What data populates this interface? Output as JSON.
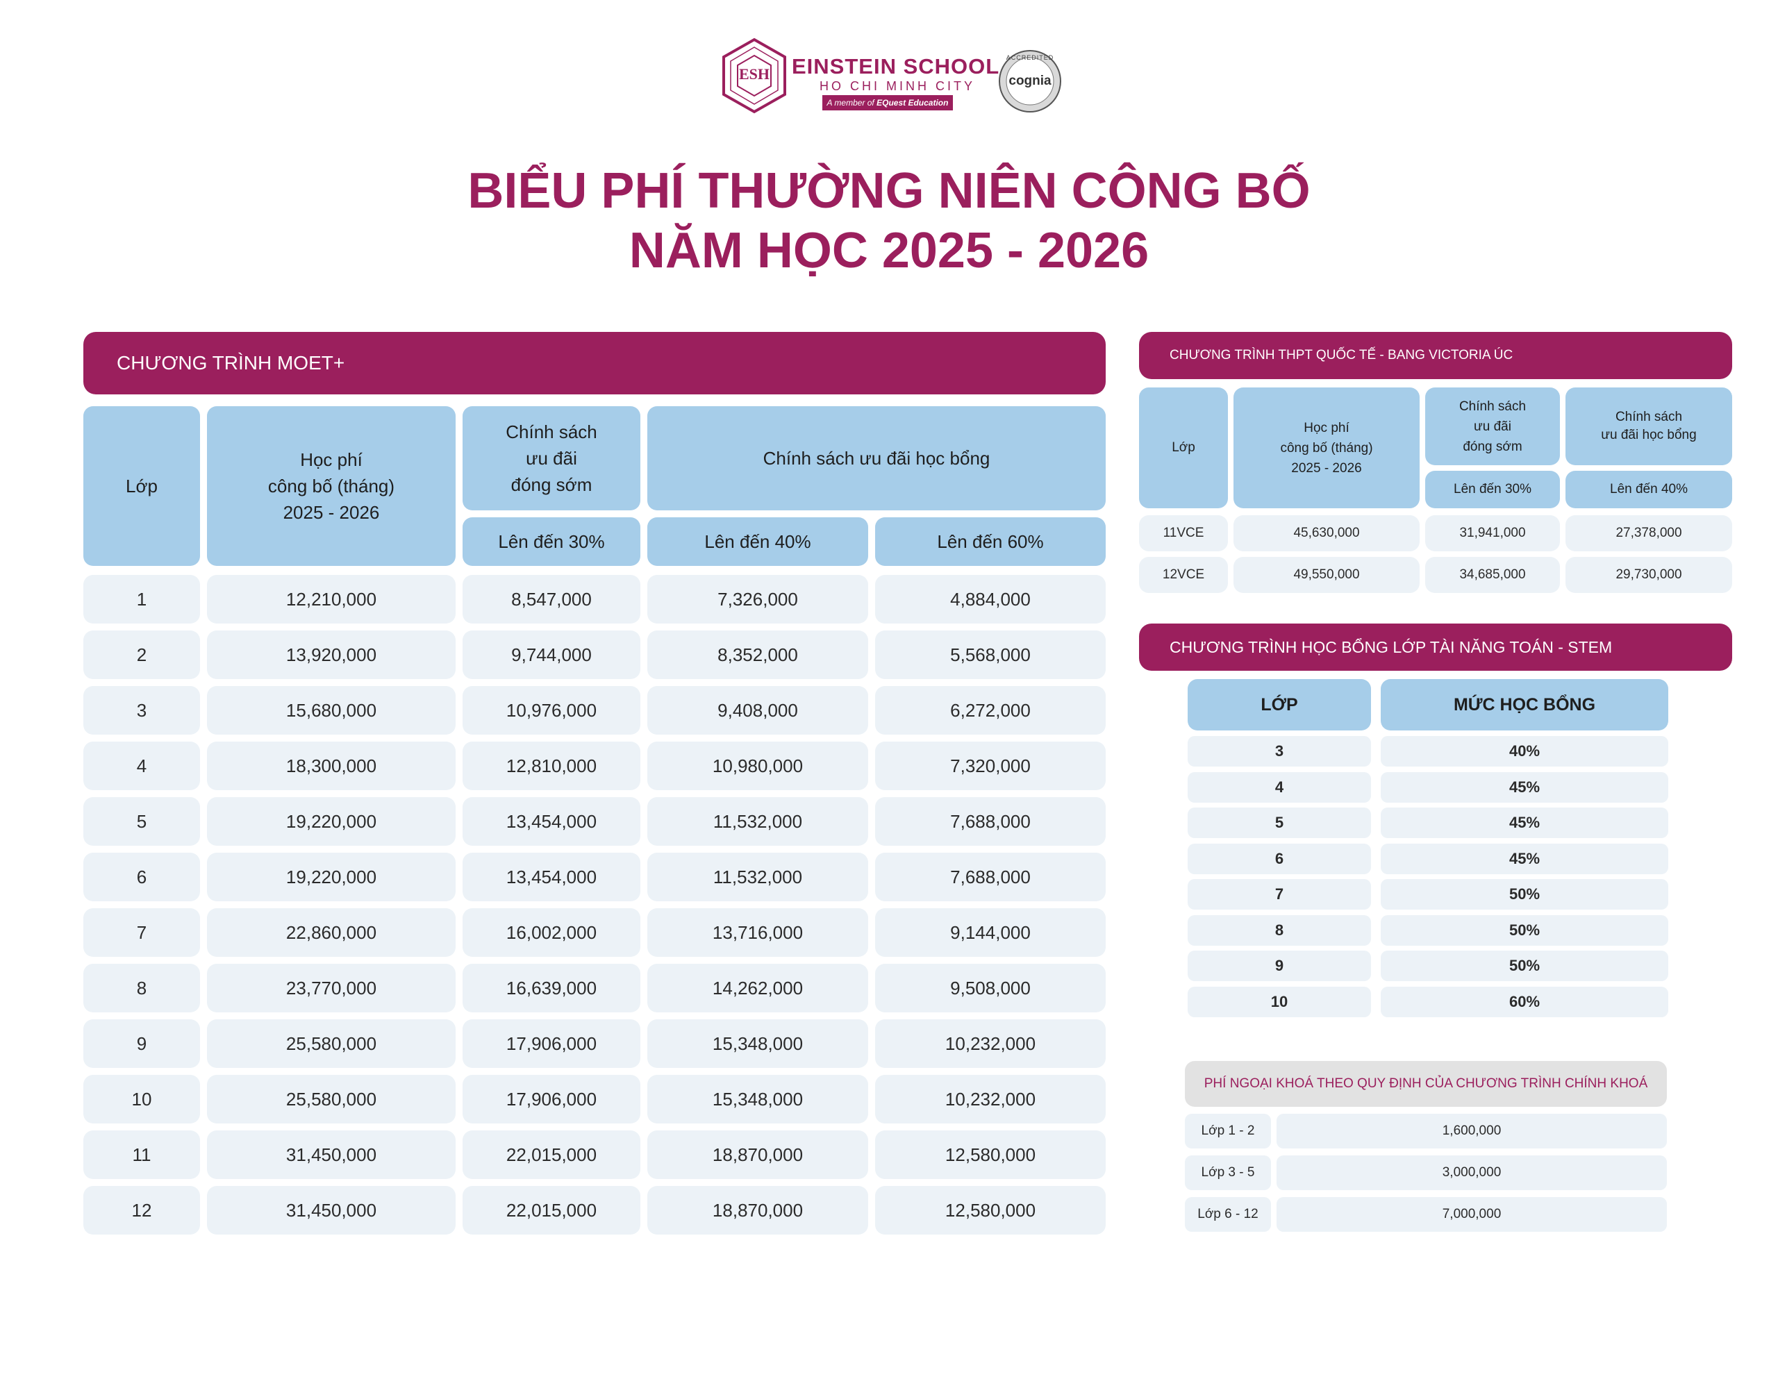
{
  "logo": {
    "emblem_text": "ESH",
    "school_name": "EINSTEIN SCHOOL",
    "city": "HO CHI MINH CITY",
    "member_prefix": "A member of",
    "member_brand": "EQuest Education",
    "accreditation_top": "ACCREDITED",
    "accreditation_name": "cognia"
  },
  "title": {
    "line1": "BIỂU PHÍ THƯỜNG NIÊN CÔNG BỐ",
    "line2": "NĂM HỌC 2025 - 2026"
  },
  "colors": {
    "brand": "#9b1f5d",
    "header_blue": "#a6cde9",
    "row_bg": "#ecf2f7",
    "grey_banner": "#e2e2e2"
  },
  "moet": {
    "banner": "CHƯƠNG TRÌNH MOET+",
    "headers": {
      "grade": "Lớp",
      "fee_l1": "Học phí",
      "fee_l2": "công bố (tháng)",
      "fee_l3": "2025 - 2026",
      "early_l1": "Chính sách",
      "early_l2": "ưu đãi",
      "early_l3": "đóng sớm",
      "scholarship": "Chính sách ưu đãi học bổng",
      "early_sub": "Lên đến 30%",
      "sch_sub1": "Lên đến 40%",
      "sch_sub2": "Lên đến 60%"
    },
    "rows": [
      [
        "1",
        "12,210,000",
        "8,547,000",
        "7,326,000",
        "4,884,000"
      ],
      [
        "2",
        "13,920,000",
        "9,744,000",
        "8,352,000",
        "5,568,000"
      ],
      [
        "3",
        "15,680,000",
        "10,976,000",
        "9,408,000",
        "6,272,000"
      ],
      [
        "4",
        "18,300,000",
        "12,810,000",
        "10,980,000",
        "7,320,000"
      ],
      [
        "5",
        "19,220,000",
        "13,454,000",
        "11,532,000",
        "7,688,000"
      ],
      [
        "6",
        "19,220,000",
        "13,454,000",
        "11,532,000",
        "7,688,000"
      ],
      [
        "7",
        "22,860,000",
        "16,002,000",
        "13,716,000",
        "9,144,000"
      ],
      [
        "8",
        "23,770,000",
        "16,639,000",
        "14,262,000",
        "9,508,000"
      ],
      [
        "9",
        "25,580,000",
        "17,906,000",
        "15,348,000",
        "10,232,000"
      ],
      [
        "10",
        "25,580,000",
        "17,906,000",
        "15,348,000",
        "10,232,000"
      ],
      [
        "11",
        "31,450,000",
        "22,015,000",
        "18,870,000",
        "12,580,000"
      ],
      [
        "12",
        "31,450,000",
        "22,015,000",
        "18,870,000",
        "12,580,000"
      ]
    ]
  },
  "vce": {
    "banner": "CHƯƠNG TRÌNH THPT QUỐC TẾ - BANG VICTORIA ÚC",
    "headers": {
      "grade": "Lớp",
      "fee_l1": "Học phí",
      "fee_l2": "công bố (tháng)",
      "fee_l3": "2025 - 2026",
      "early_l1": "Chính sách",
      "early_l2": "ưu đãi",
      "early_l3": "đóng sớm",
      "sch_l1": "Chính sách",
      "sch_l2": "ưu đãi học bổng",
      "early_sub": "Lên đến 30%",
      "sch_sub": "Lên đến 40%"
    },
    "rows": [
      [
        "11VCE",
        "45,630,000",
        "31,941,000",
        "27,378,000"
      ],
      [
        "12VCE",
        "49,550,000",
        "34,685,000",
        "29,730,000"
      ]
    ]
  },
  "stem": {
    "banner": "CHƯƠNG TRÌNH HỌC BỔNG LỚP TÀI NĂNG TOÁN - STEM",
    "headers": {
      "grade": "LỚP",
      "level": "MỨC HỌC BỔNG"
    },
    "rows": [
      [
        "3",
        "40%"
      ],
      [
        "4",
        "45%"
      ],
      [
        "5",
        "45%"
      ],
      [
        "6",
        "45%"
      ],
      [
        "7",
        "50%"
      ],
      [
        "8",
        "50%"
      ],
      [
        "9",
        "50%"
      ],
      [
        "10",
        "60%"
      ]
    ]
  },
  "extra": {
    "banner": "PHÍ NGOẠI KHOÁ THEO QUY ĐỊNH CỦA CHƯƠNG TRÌNH CHÍNH KHOÁ",
    "rows": [
      [
        "Lớp 1 - 2",
        "1,600,000"
      ],
      [
        "Lớp 3 - 5",
        "3,000,000"
      ],
      [
        "Lớp 6 - 12",
        "7,000,000"
      ]
    ]
  }
}
